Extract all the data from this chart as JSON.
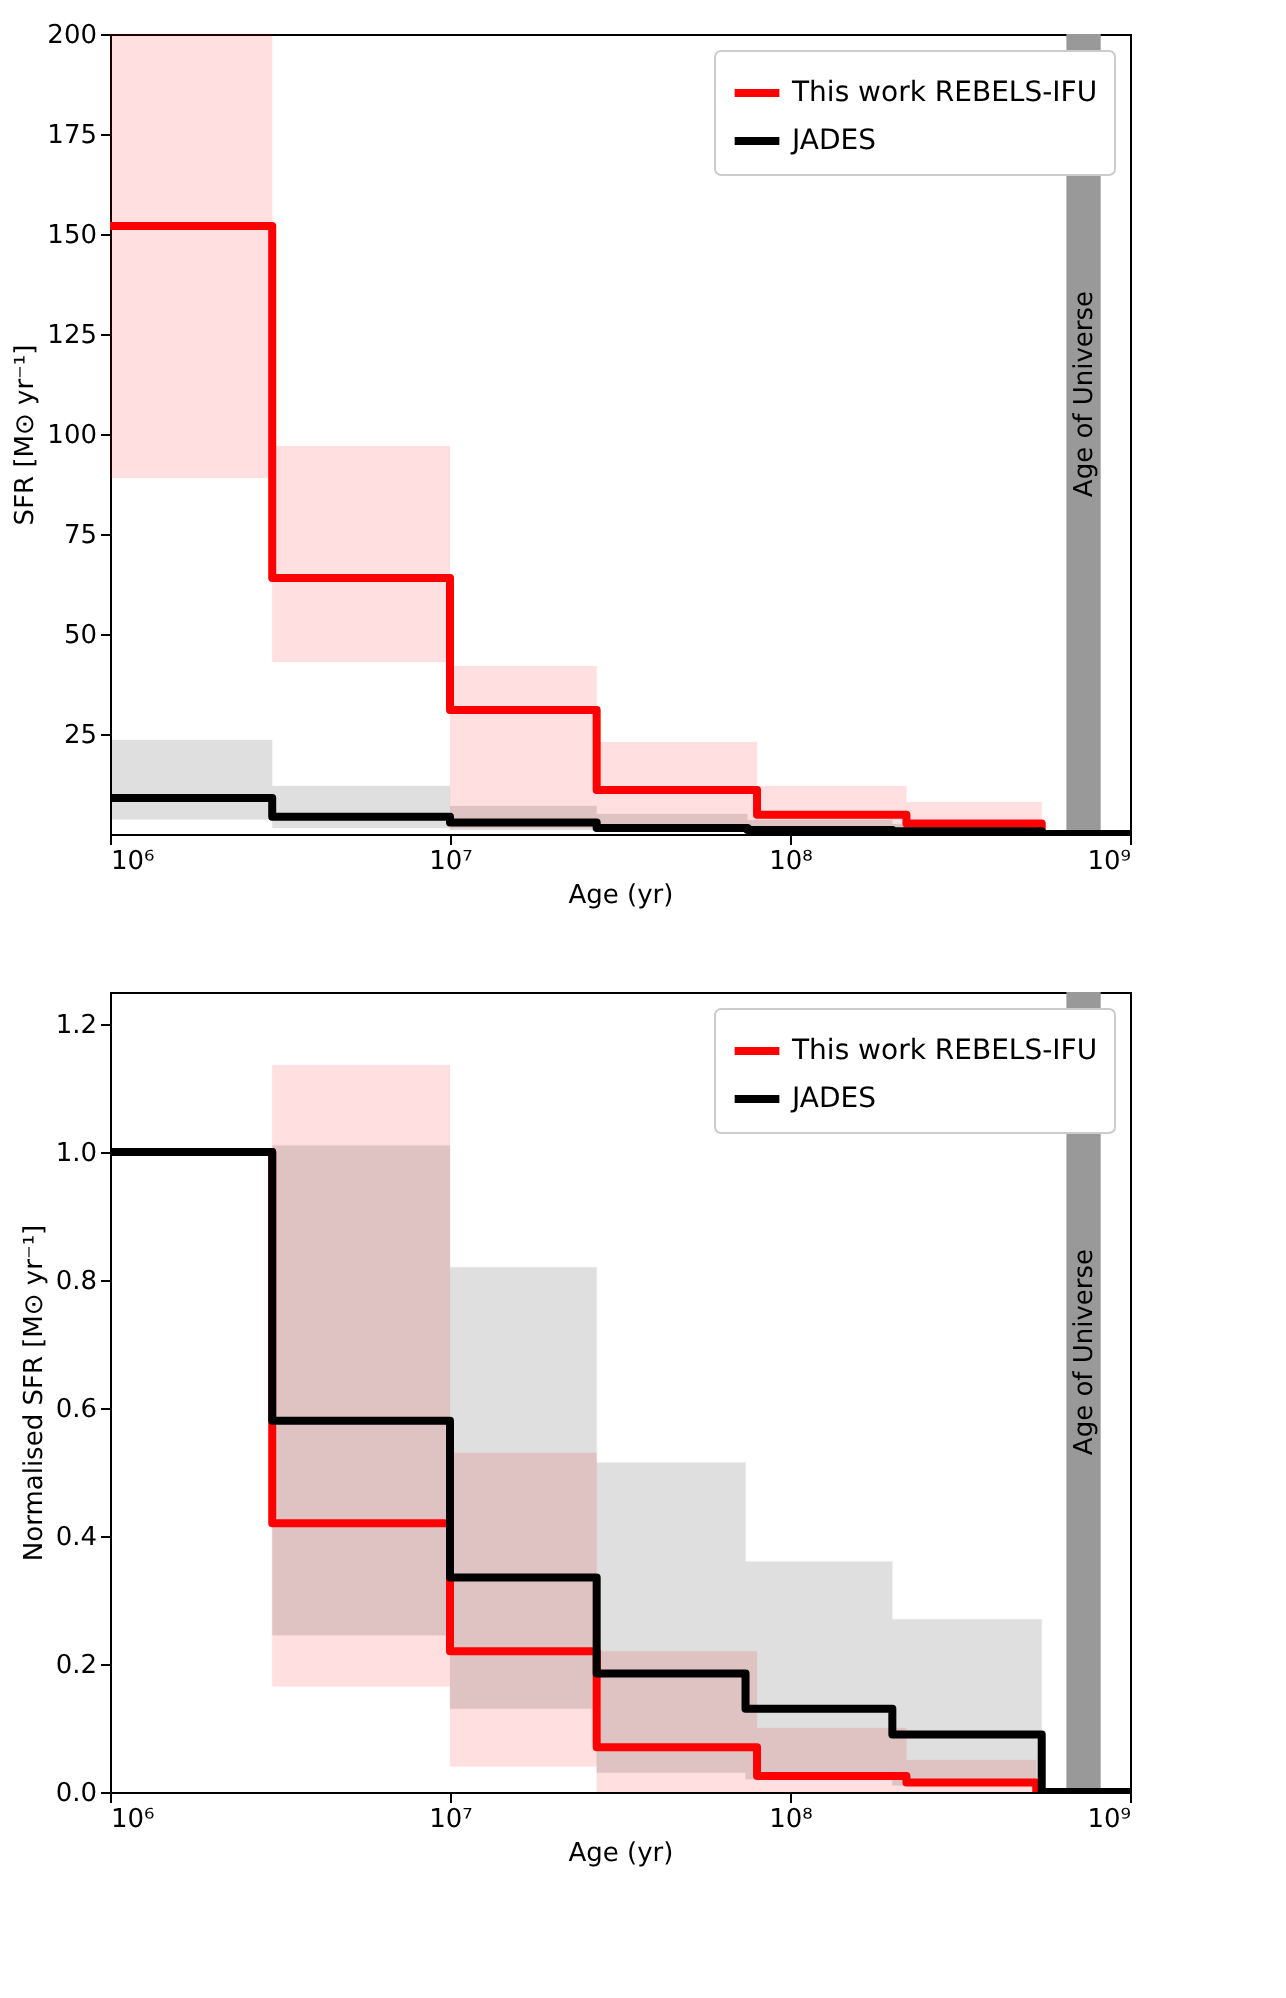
{
  "chart_data": [
    {
      "type": "step",
      "xlabel": "Age (yr)",
      "ylabel": "SFR [M⊙ yr⁻¹]",
      "log": "x",
      "legend": "top right",
      "grid": false,
      "line_style": "solid",
      "marker": "none",
      "xlim": [
        1000000,
        1000000000
      ],
      "xticks": [
        {
          "value": 1000000,
          "label": "10⁶"
        },
        {
          "value": 10000000,
          "label": "10⁷"
        },
        {
          "value": 100000000,
          "label": "10⁸"
        },
        {
          "value": 1000000000,
          "label": "10⁹"
        }
      ],
      "ylim": [
        0,
        200
      ],
      "yticks": [
        25,
        50,
        75,
        100,
        125,
        150,
        175,
        200
      ],
      "series": [
        {
          "name": "This work REBELS-IFU",
          "color": "#ff0000",
          "x": [
            1000000,
            3000000,
            10000000,
            27000000,
            80000000,
            220000000,
            550000000,
            1000000000
          ],
          "values": [
            152,
            64,
            31,
            11,
            4.8,
            2.6,
            0,
            0
          ],
          "lower": [
            89,
            43,
            1.5,
            1,
            0.5,
            0.2,
            0,
            0
          ],
          "upper": [
            200,
            97,
            42,
            23,
            12,
            8,
            0,
            0
          ]
        },
        {
          "name": "JADES",
          "color": "#000000",
          "x": [
            1000000,
            3000000,
            10000000,
            27000000,
            75000000,
            200000000,
            550000000,
            1000000000
          ],
          "values": [
            9,
            4.3,
            2.9,
            1.5,
            1,
            0.7,
            0,
            0
          ],
          "lower": [
            3.6,
            1.5,
            1,
            0.5,
            0.3,
            0.2,
            0,
            0
          ],
          "upper": [
            23.5,
            12,
            7,
            5,
            3.5,
            2.5,
            0,
            0
          ]
        }
      ],
      "bands": [
        {
          "axis": "x",
          "from": 650000000,
          "to": 820000000,
          "label": "Age of Universe",
          "color": "#999999"
        }
      ]
    },
    {
      "type": "step",
      "xlabel": "Age (yr)",
      "ylabel": "Normalised SFR [M⊙ yr⁻¹]",
      "log": "x",
      "legend": "top right",
      "grid": false,
      "line_style": "solid",
      "marker": "none",
      "xlim": [
        1000000,
        1000000000
      ],
      "xticks": [
        {
          "value": 1000000,
          "label": "10⁶"
        },
        {
          "value": 10000000,
          "label": "10⁷"
        },
        {
          "value": 100000000,
          "label": "10⁸"
        },
        {
          "value": 1000000000,
          "label": "10⁹"
        }
      ],
      "ylim": [
        0,
        1.25
      ],
      "yticks": [
        {
          "value": 0,
          "label": "0.0"
        },
        0.2,
        0.4,
        0.6,
        0.8,
        {
          "value": 1,
          "label": "1.0"
        },
        1.2
      ],
      "series": [
        {
          "name": "This work REBELS-IFU",
          "color": "#ff0000",
          "x": [
            1000000,
            3000000,
            10000000,
            27000000,
            80000000,
            220000000,
            530000000,
            1000000000
          ],
          "values": [
            1,
            0.42,
            0.22,
            0.07,
            0.025,
            0.015,
            0,
            0
          ],
          "lower": [
            1,
            0.165,
            0.04,
            0,
            0,
            0,
            0,
            0
          ],
          "upper": [
            1,
            1.136,
            0.53,
            0.22,
            0.1,
            0.05,
            0,
            0
          ]
        },
        {
          "name": "JADES",
          "color": "#000000",
          "x": [
            1000000,
            3000000,
            10000000,
            27000000,
            74000000,
            200000000,
            550000000,
            1000000000
          ],
          "values": [
            1,
            0.58,
            0.335,
            0.185,
            0.13,
            0.09,
            0,
            0
          ],
          "lower": [
            1,
            0.245,
            0.13,
            0.03,
            0.02,
            0.01,
            0,
            0
          ],
          "upper": [
            1,
            1.01,
            0.82,
            0.515,
            0.36,
            0.27,
            0,
            0
          ]
        }
      ],
      "bands": [
        {
          "axis": "x",
          "from": 650000000,
          "to": 820000000,
          "label": "Age of Universe",
          "color": "#999999"
        }
      ]
    }
  ]
}
